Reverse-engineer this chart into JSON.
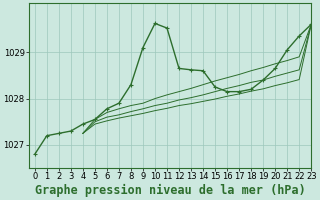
{
  "background_color": "#cce8df",
  "grid_color": "#9dc8bc",
  "line_color": "#2d6e2d",
  "title": "Graphe pression niveau de la mer (hPa)",
  "xlim": [
    -0.5,
    23
  ],
  "ylim": [
    1026.5,
    1030.05
  ],
  "yticks": [
    1027,
    1028,
    1029
  ],
  "xticks": [
    0,
    1,
    2,
    3,
    4,
    5,
    6,
    7,
    8,
    9,
    10,
    11,
    12,
    13,
    14,
    15,
    16,
    17,
    18,
    19,
    20,
    21,
    22,
    23
  ],
  "series_main": [
    1026.8,
    1027.2,
    1027.25,
    1027.3,
    1027.45,
    1027.55,
    1027.78,
    1027.9,
    1028.3,
    1029.1,
    1029.62,
    1029.52,
    1028.65,
    1028.62,
    1028.6,
    1028.25,
    1028.15,
    1028.15,
    1028.2,
    1028.4,
    1028.65,
    1029.05,
    1029.35,
    1029.6
  ],
  "series_ensemble": [
    [
      1027.25,
      1027.55,
      1027.7,
      1027.78,
      1027.85,
      1027.9,
      1028.0,
      1028.08,
      1028.15,
      1028.22,
      1028.3,
      1028.38,
      1028.45,
      1028.52,
      1028.6,
      1028.67,
      1028.75,
      1028.82,
      1028.9,
      1029.6
    ],
    [
      1027.25,
      1027.5,
      1027.6,
      1027.65,
      1027.72,
      1027.78,
      1027.85,
      1027.9,
      1027.97,
      1028.02,
      1028.08,
      1028.15,
      1028.22,
      1028.28,
      1028.35,
      1028.4,
      1028.48,
      1028.55,
      1028.62,
      1029.6
    ],
    [
      1027.25,
      1027.45,
      1027.52,
      1027.58,
      1027.63,
      1027.68,
      1027.74,
      1027.79,
      1027.85,
      1027.89,
      1027.94,
      1027.99,
      1028.05,
      1028.1,
      1028.16,
      1028.21,
      1028.28,
      1028.34,
      1028.41,
      1029.6
    ]
  ],
  "ensemble_x_start": 4,
  "title_fontsize": 8.5,
  "tick_fontsize": 6
}
